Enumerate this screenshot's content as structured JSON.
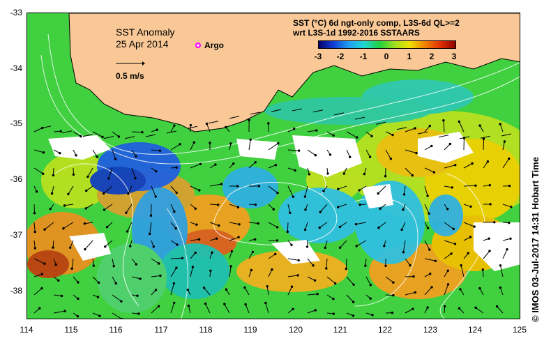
{
  "title": {
    "line1": "SST Anomaly",
    "line2": "25 Apr 2014"
  },
  "argo_label": "Argo",
  "arrow_scale_label": "0.5 m/s",
  "legend": {
    "line1": "SST (°C) 6d ngt-only comp, L3S-6d QL>=2",
    "line2": "wrt L3S-1d 1992-2016 SSTAARS",
    "ticks": [
      "-3",
      "-2",
      "-1",
      "0",
      "1",
      "2",
      "3"
    ]
  },
  "axes": {
    "x_ticks": [
      "114",
      "115",
      "116",
      "117",
      "118",
      "119",
      "120",
      "121",
      "122",
      "123",
      "124",
      "125"
    ],
    "y_ticks": [
      "-33",
      "-34",
      "-35",
      "-36",
      "-37",
      "-38"
    ]
  },
  "credit": "© IMOS 03-Jul-2017 14:31 Hobart Time",
  "colors": {
    "land": "#f9c896",
    "contour": "#ffffff",
    "argo": "#ff00ff"
  }
}
